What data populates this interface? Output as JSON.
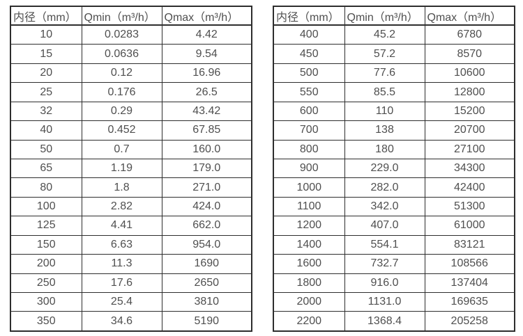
{
  "page": {
    "background_color": "#ffffff",
    "border_color": "#2d2d2d",
    "text_color": "#4f4f4f"
  },
  "tables": [
    {
      "name": "flow-range-table-small-diameters",
      "headers": [
        "内径（mm）",
        "Qmin（m³/h）",
        "Qmax（m³/h）"
      ],
      "rows": [
        [
          "10",
          "0.0283",
          "4.42"
        ],
        [
          "15",
          "0.0636",
          "9.54"
        ],
        [
          "20",
          "0.12",
          "16.96"
        ],
        [
          "25",
          "0.176",
          "26.5"
        ],
        [
          "32",
          "0.29",
          "43.42"
        ],
        [
          "40",
          "0.452",
          "67.85"
        ],
        [
          "50",
          "0.7",
          "160.0"
        ],
        [
          "65",
          "1.19",
          "179.0"
        ],
        [
          "80",
          "1.8",
          "271.0"
        ],
        [
          "100",
          "2.82",
          "424.0"
        ],
        [
          "125",
          "4.41",
          "662.0"
        ],
        [
          "150",
          "6.63",
          "954.0"
        ],
        [
          "200",
          "11.3",
          "1690"
        ],
        [
          "250",
          "17.6",
          "2650"
        ],
        [
          "300",
          "25.4",
          "3810"
        ],
        [
          "350",
          "34.6",
          "5190"
        ]
      ]
    },
    {
      "name": "flow-range-table-large-diameters",
      "headers": [
        "内径（mm）",
        "Qmin（m³/h）",
        "Qmax（m³/h）"
      ],
      "rows": [
        [
          "400",
          "45.2",
          "6780"
        ],
        [
          "450",
          "57.2",
          "8570"
        ],
        [
          "500",
          "77.6",
          "10600"
        ],
        [
          "550",
          "85.5",
          "12800"
        ],
        [
          "600",
          "110",
          "15200"
        ],
        [
          "700",
          "138",
          "20700"
        ],
        [
          "800",
          "180",
          "27100"
        ],
        [
          "900",
          "229.0",
          "34300"
        ],
        [
          "1000",
          "282.0",
          "42400"
        ],
        [
          "1100",
          "342.0",
          "51300"
        ],
        [
          "1200",
          "407.0",
          "61000"
        ],
        [
          "1400",
          "554.1",
          "83121"
        ],
        [
          "1600",
          "732.7",
          "108566"
        ],
        [
          "1800",
          "916.0",
          "137404"
        ],
        [
          "2000",
          "1131.0",
          "169635"
        ],
        [
          "2200",
          "1368.4",
          "205258"
        ]
      ]
    }
  ]
}
